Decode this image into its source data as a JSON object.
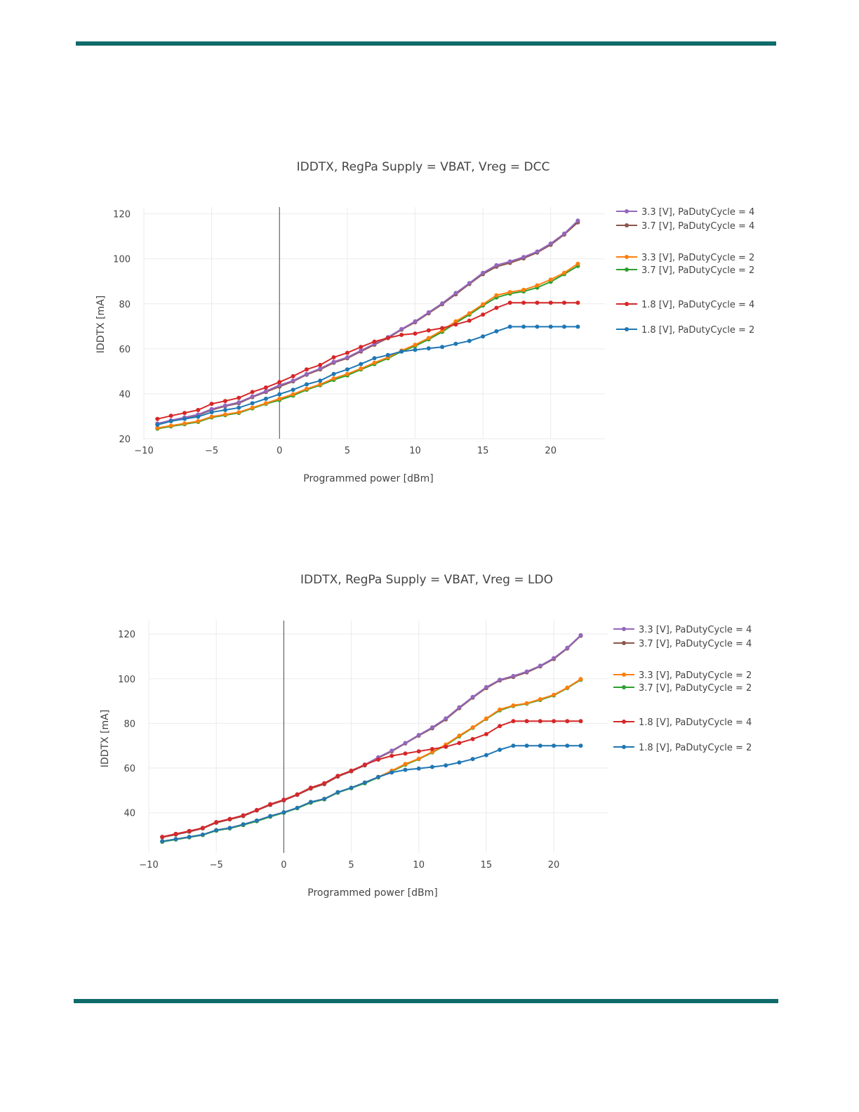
{
  "colors": {
    "rule": "#0e6b6a",
    "purple": "#9467bd",
    "brown": "#8c564b",
    "orange": "#ff7f0e",
    "green": "#2ca02c",
    "red": "#d62728",
    "blue": "#1f77b4"
  },
  "chart_data": [
    {
      "type": "line",
      "title": "IDDTX, RegPa Supply = VBAT, Vreg = DCC",
      "xlabel": "Programmed power [dBm]",
      "ylabel": "IDDTX [mA]",
      "xlim": [
        -10,
        24
      ],
      "ylim": [
        20,
        123
      ],
      "xticks": [
        -10,
        -5,
        0,
        5,
        10,
        15,
        20
      ],
      "xtick_labels": [
        "−10",
        "−5",
        "0",
        "5",
        "10",
        "15",
        "20"
      ],
      "yticks": [
        20,
        40,
        60,
        80,
        100,
        120
      ],
      "ytick_labels": [
        "20",
        "40",
        "60",
        "80",
        "100",
        "120"
      ],
      "x": [
        -9,
        -8,
        -7,
        -6,
        -5,
        -4,
        -3,
        -2,
        -1,
        0,
        1,
        2,
        3,
        4,
        5,
        6,
        7,
        8,
        9,
        10,
        11,
        12,
        13,
        14,
        15,
        16,
        17,
        18,
        19,
        20,
        21,
        22
      ],
      "series": [
        {
          "name": "3.3 [V], PaDutyCycle = 4",
          "color": "#9467bd",
          "values": [
            26.8,
            28.2,
            29.5,
            30.8,
            33.2,
            34.8,
            36.2,
            38.8,
            41.2,
            43.8,
            45.8,
            48.8,
            51.2,
            54.2,
            56.2,
            59.2,
            62.2,
            65.2,
            68.8,
            72.2,
            76.2,
            80.2,
            84.8,
            89.2,
            93.8,
            97.2,
            98.8,
            100.8,
            103.2,
            106.8,
            111.2,
            117.0
          ]
        },
        {
          "name": "3.7 [V], PaDutyCycle = 4",
          "color": "#8c564b",
          "values": [
            26.5,
            28.0,
            29.2,
            30.5,
            32.8,
            34.5,
            35.8,
            38.5,
            40.8,
            43.2,
            45.5,
            48.5,
            50.8,
            53.8,
            55.8,
            58.8,
            61.8,
            64.8,
            68.5,
            71.8,
            75.8,
            79.8,
            84.2,
            88.8,
            93.2,
            96.5,
            98.2,
            100.2,
            102.8,
            106.2,
            110.8,
            116.2
          ]
        },
        {
          "name": "3.3 [V], PaDutyCycle = 2",
          "color": "#ff7f0e",
          "values": [
            24.8,
            25.8,
            26.8,
            27.8,
            29.8,
            30.8,
            31.8,
            33.8,
            35.8,
            37.8,
            39.8,
            42.2,
            44.2,
            46.8,
            48.8,
            51.2,
            53.8,
            56.2,
            59.2,
            61.8,
            64.8,
            68.2,
            72.2,
            75.8,
            79.8,
            83.8,
            85.2,
            86.2,
            88.2,
            90.8,
            93.8,
            97.8
          ]
        },
        {
          "name": "3.7 [V], PaDutyCycle = 2",
          "color": "#2ca02c",
          "values": [
            24.5,
            25.5,
            26.5,
            27.5,
            29.5,
            30.5,
            31.5,
            33.5,
            35.5,
            37.2,
            39.2,
            41.8,
            43.8,
            46.2,
            48.2,
            50.8,
            53.2,
            55.8,
            58.8,
            61.2,
            64.2,
            67.5,
            71.5,
            75.2,
            79.2,
            82.8,
            84.5,
            85.5,
            87.2,
            89.8,
            93.2,
            96.8
          ]
        },
        {
          "name": "1.8 [V], PaDutyCycle = 4",
          "color": "#d62728",
          "values": [
            28.8,
            30.2,
            31.5,
            32.8,
            35.5,
            36.8,
            38.2,
            40.8,
            42.8,
            45.2,
            47.8,
            50.8,
            52.8,
            56.2,
            58.2,
            60.8,
            63.2,
            64.8,
            66.2,
            66.8,
            68.2,
            69.2,
            70.8,
            72.5,
            75.2,
            78.2,
            80.5,
            80.5,
            80.5,
            80.5,
            80.5,
            80.5
          ]
        },
        {
          "name": "1.8 [V], PaDutyCycle = 2",
          "color": "#1f77b4",
          "values": [
            26.2,
            27.8,
            28.8,
            29.8,
            31.8,
            32.8,
            33.8,
            35.8,
            37.8,
            39.8,
            41.8,
            44.2,
            45.8,
            48.8,
            50.8,
            53.2,
            55.8,
            57.2,
            58.8,
            59.5,
            60.2,
            60.8,
            62.2,
            63.5,
            65.5,
            67.8,
            69.8,
            69.8,
            69.8,
            69.8,
            69.8,
            69.8
          ]
        }
      ]
    },
    {
      "type": "line",
      "title": "IDDTX, RegPa Supply = VBAT, Vreg = LDO",
      "xlabel": "Programmed power [dBm]",
      "ylabel": "IDDTX [mA]",
      "xlim": [
        -10,
        24
      ],
      "ylim": [
        22,
        126
      ],
      "xticks": [
        -10,
        -5,
        0,
        5,
        10,
        15,
        20
      ],
      "xtick_labels": [
        "−10",
        "−5",
        "0",
        "5",
        "10",
        "15",
        "20"
      ],
      "yticks": [
        40,
        60,
        80,
        100,
        120
      ],
      "ytick_labels": [
        "40",
        "60",
        "80",
        "100",
        "120"
      ],
      "x": [
        -9,
        -8,
        -7,
        -6,
        -5,
        -4,
        -3,
        -2,
        -1,
        0,
        1,
        2,
        3,
        4,
        5,
        6,
        7,
        8,
        9,
        10,
        11,
        12,
        13,
        14,
        15,
        16,
        17,
        18,
        19,
        20,
        21,
        22
      ],
      "series": [
        {
          "name": "3.3 [V], PaDutyCycle = 4",
          "color": "#9467bd",
          "values": [
            29.2,
            30.5,
            31.8,
            33.2,
            35.8,
            37.2,
            38.8,
            41.2,
            43.8,
            45.8,
            48.2,
            51.2,
            53.2,
            56.5,
            58.8,
            61.5,
            64.8,
            67.8,
            71.2,
            74.8,
            78.2,
            82.2,
            87.2,
            91.8,
            96.2,
            99.5,
            101.2,
            103.2,
            105.8,
            109.2,
            113.8,
            119.5
          ]
        },
        {
          "name": "3.7 [V], PaDutyCycle = 4",
          "color": "#8c564b",
          "values": [
            29.0,
            30.2,
            31.5,
            33.0,
            35.5,
            37.0,
            38.5,
            41.0,
            43.5,
            45.5,
            48.0,
            50.8,
            52.8,
            56.2,
            58.5,
            61.2,
            64.5,
            67.5,
            71.0,
            74.5,
            77.8,
            81.8,
            86.8,
            91.5,
            95.8,
            99.2,
            100.8,
            102.8,
            105.5,
            108.8,
            113.5,
            119.2
          ]
        },
        {
          "name": "3.3 [V], PaDutyCycle = 2",
          "color": "#ff7f0e",
          "values": [
            27.2,
            28.2,
            29.2,
            30.2,
            32.2,
            33.2,
            34.8,
            36.5,
            38.5,
            40.2,
            42.2,
            44.8,
            46.2,
            49.2,
            51.2,
            53.5,
            56.0,
            58.8,
            61.8,
            64.2,
            67.2,
            70.5,
            74.5,
            78.2,
            82.2,
            86.2,
            88.0,
            89.0,
            90.8,
            92.8,
            96.0,
            99.8
          ]
        },
        {
          "name": "3.7 [V], PaDutyCycle = 2",
          "color": "#2ca02c",
          "values": [
            27.0,
            28.0,
            29.0,
            30.0,
            32.0,
            33.0,
            34.5,
            36.2,
            38.2,
            40.0,
            42.0,
            44.5,
            46.0,
            49.0,
            51.0,
            53.2,
            55.8,
            58.5,
            61.5,
            64.0,
            67.0,
            70.2,
            74.2,
            78.0,
            82.0,
            85.8,
            87.8,
            88.8,
            90.5,
            92.5,
            95.8,
            99.5
          ]
        },
        {
          "name": "1.8 [V], PaDutyCycle = 4",
          "color": "#d62728",
          "values": [
            29.2,
            30.5,
            31.8,
            33.2,
            35.8,
            37.2,
            38.8,
            41.2,
            43.8,
            45.8,
            48.2,
            51.2,
            53.2,
            56.5,
            58.8,
            61.5,
            63.8,
            65.5,
            66.5,
            67.5,
            68.5,
            69.5,
            71.2,
            73.0,
            75.2,
            78.8,
            81.0,
            81.0,
            81.0,
            81.0,
            81.0,
            81.0
          ]
        },
        {
          "name": "1.8 [V], PaDutyCycle = 2",
          "color": "#1f77b4",
          "values": [
            27.2,
            28.2,
            29.2,
            30.2,
            32.2,
            33.2,
            34.8,
            36.5,
            38.5,
            40.2,
            42.2,
            44.8,
            46.2,
            49.2,
            51.2,
            53.5,
            56.0,
            58.0,
            59.2,
            59.8,
            60.5,
            61.2,
            62.5,
            64.0,
            65.8,
            68.2,
            70.0,
            70.0,
            70.0,
            70.0,
            70.0,
            70.0
          ]
        }
      ]
    }
  ]
}
